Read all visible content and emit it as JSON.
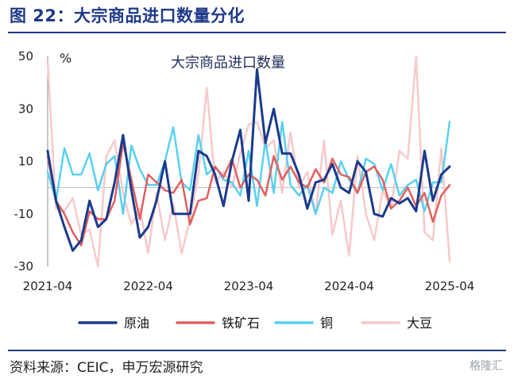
{
  "figure": {
    "title": "图 22：大宗商品进口数量分化",
    "source": "资料来源：CEIC，申万宏源研究",
    "watermark": "格隆汇"
  },
  "chart_data": {
    "type": "line",
    "title": "大宗商品进口数量",
    "ylabel": "%",
    "ylim": [
      -30,
      50
    ],
    "yticks": [
      -30,
      -10,
      10,
      30,
      50
    ],
    "x_ticks": [
      "2021-04",
      "2022-04",
      "2023-04",
      "2024-04",
      "2025-04"
    ],
    "x_start": "2021-04",
    "x_end": "2025-04",
    "legend_position": "bottom",
    "grid": false,
    "x": [
      "2021-04",
      "2021-05",
      "2021-06",
      "2021-07",
      "2021-08",
      "2021-09",
      "2021-10",
      "2021-11",
      "2021-12",
      "2022-01",
      "2022-02",
      "2022-03",
      "2022-04",
      "2022-05",
      "2022-06",
      "2022-07",
      "2022-08",
      "2022-09",
      "2022-10",
      "2022-11",
      "2022-12",
      "2023-01",
      "2023-02",
      "2023-03",
      "2023-04",
      "2023-05",
      "2023-06",
      "2023-07",
      "2023-08",
      "2023-09",
      "2023-10",
      "2023-11",
      "2023-12",
      "2024-01",
      "2024-02",
      "2024-03",
      "2024-04",
      "2024-05",
      "2024-06",
      "2024-07",
      "2024-08",
      "2024-09",
      "2024-10",
      "2024-11",
      "2024-12",
      "2025-01",
      "2025-02",
      "2025-03",
      "2025-04"
    ],
    "series": [
      {
        "name": "原油",
        "color": "#1a3a8c",
        "width": 3,
        "values": [
          14,
          -5,
          -15,
          -24,
          -20,
          -5,
          -15,
          -12,
          2,
          20,
          -1,
          -19,
          -15,
          -5,
          10,
          -10,
          -10,
          -10,
          14,
          12,
          5,
          -7,
          10,
          22,
          -5,
          45,
          17,
          30,
          13,
          13,
          5,
          -8,
          2,
          3,
          9,
          0,
          -2,
          10,
          6,
          -10,
          -11,
          -4,
          -6,
          -4,
          -9,
          14,
          -5,
          5,
          8
        ]
      },
      {
        "name": "铁矿石",
        "color": "#e06060",
        "width": 2.5,
        "values": [
          12,
          -5,
          -10,
          -17,
          -22,
          -9,
          -12,
          -12,
          -5,
          17,
          3,
          -12,
          5,
          2,
          -1,
          -2,
          3,
          -14,
          -5,
          -4,
          8,
          4,
          11,
          0,
          5,
          3,
          -3,
          12,
          3,
          8,
          2,
          0,
          7,
          2,
          11,
          5,
          4,
          -2,
          6,
          8,
          3,
          -8,
          -5,
          0,
          -7,
          -2,
          -13,
          -3,
          1
        ]
      },
      {
        "name": "铜",
        "color": "#59d0ef",
        "width": 2.5,
        "values": [
          6,
          -5,
          15,
          5,
          5,
          13,
          -1,
          9,
          12,
          -10,
          16,
          7,
          1,
          1,
          10,
          23,
          2,
          -1,
          20,
          5,
          8,
          3,
          2,
          -3,
          14,
          -7,
          18,
          -2,
          25,
          1,
          -3,
          1,
          -10,
          0,
          -2,
          10,
          3,
          -2,
          11,
          9,
          -1,
          9,
          -3,
          1,
          3,
          -9,
          2,
          2,
          25
        ]
      },
      {
        "name": "大豆",
        "color": "#f6c9cb",
        "width": 2.5,
        "values": [
          48,
          -8,
          -9,
          -4,
          -18,
          -16,
          -30,
          12,
          18,
          -2,
          -14,
          -8,
          -25,
          -2,
          -20,
          -6,
          -25,
          -12,
          5,
          38,
          2,
          6,
          0,
          13,
          24,
          25,
          15,
          18,
          -2,
          21,
          0,
          6,
          -10,
          18,
          -18,
          -5,
          -26,
          12,
          -10,
          -20,
          -1,
          -8,
          14,
          11,
          50,
          -17,
          -20,
          15,
          -28
        ]
      }
    ]
  }
}
